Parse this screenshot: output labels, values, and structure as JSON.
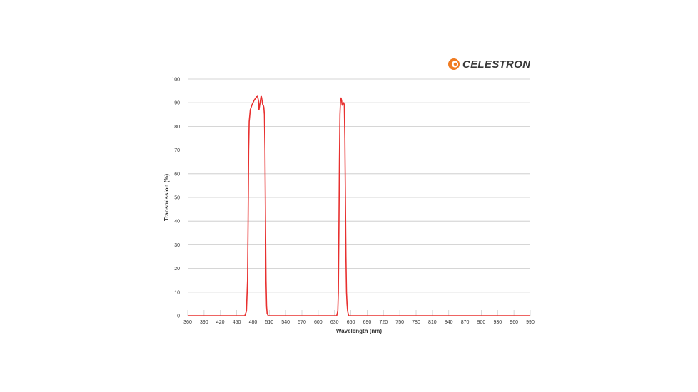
{
  "brand": {
    "name": "CELESTRON",
    "accent_color": "#f07c22",
    "icon": "celestron-swirl-logo"
  },
  "chart_data": {
    "type": "line",
    "xlabel": "Wavelength (nm)",
    "ylabel": "Transmission (%)",
    "xlim": [
      360,
      990
    ],
    "ylim": [
      0,
      100
    ],
    "xticks": [
      360,
      390,
      420,
      450,
      480,
      510,
      540,
      570,
      600,
      630,
      660,
      690,
      720,
      750,
      780,
      810,
      840,
      870,
      900,
      930,
      960,
      990
    ],
    "yticks": [
      0,
      10,
      20,
      30,
      40,
      50,
      60,
      70,
      80,
      90,
      100
    ],
    "grid": "horizontal",
    "legend": "none",
    "series_color": "#e8302f",
    "series": [
      {
        "x": [
          360,
          465,
          468,
          470,
          471,
          472,
          473,
          475,
          478,
          482,
          485,
          488,
          489,
          490,
          491,
          493,
          495,
          496,
          498,
          499,
          500,
          501,
          502,
          503,
          504,
          505,
          506,
          508,
          510,
          540,
          630,
          634,
          636,
          637,
          638,
          639,
          640,
          641,
          642,
          643,
          644,
          645,
          646,
          647,
          648,
          649,
          650,
          651,
          652,
          653,
          654,
          656,
          658,
          660,
          690,
          990
        ],
        "y": [
          0,
          0,
          2,
          15,
          40,
          70,
          82,
          87,
          89,
          91,
          92,
          93,
          92,
          91,
          87,
          90,
          93,
          92,
          89,
          89,
          88,
          85,
          70,
          40,
          15,
          4,
          1,
          0,
          0,
          0,
          0,
          0,
          2,
          10,
          35,
          65,
          85,
          91,
          92,
          91,
          89,
          89,
          90,
          90,
          89,
          75,
          50,
          25,
          10,
          5,
          2,
          0,
          0,
          0,
          0,
          0
        ]
      }
    ]
  }
}
